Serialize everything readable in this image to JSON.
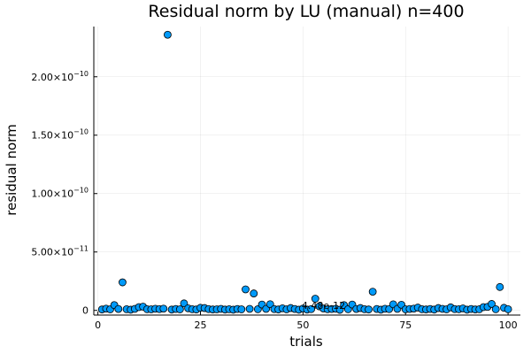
{
  "chart_data": {
    "type": "scatter",
    "title": "Residual norm by LU (manual)  n=400",
    "xlabel": "trials",
    "ylabel": "residual norm",
    "xlim": [
      -1,
      103
    ],
    "ylim": [
      -4e-12,
      2.43e-10
    ],
    "x_ticks": [
      0,
      25,
      50,
      75,
      100
    ],
    "x_tick_labels": [
      "0",
      "25",
      "50",
      "75",
      "100"
    ],
    "y_ticks": [
      0,
      5e-11,
      1e-10,
      1.5e-10,
      2e-10
    ],
    "y_tick_labels": [
      {
        "mantissa": "0",
        "exponent": ""
      },
      {
        "mantissa": "5.00×10",
        "exponent": "−11"
      },
      {
        "mantissa": "1.00×10",
        "exponent": "−10"
      },
      {
        "mantissa": "1.50×10",
        "exponent": "−10"
      },
      {
        "mantissa": "2.00×10",
        "exponent": "−10"
      }
    ],
    "grid": true,
    "legend": "none",
    "marker_color": "#009af9",
    "annotation": {
      "text": "4.48e-12",
      "x": 55,
      "y": 4.48e-12
    },
    "series": [
      {
        "x": [
          1,
          2,
          3,
          4,
          5,
          6,
          7,
          8,
          9,
          10,
          11,
          12,
          13,
          14,
          15,
          16,
          17,
          18,
          19,
          20,
          21,
          22,
          23,
          24,
          25,
          26,
          27,
          28,
          29,
          30,
          31,
          32,
          33,
          34,
          35,
          36,
          37,
          38,
          39,
          40,
          41,
          42,
          43,
          44,
          45,
          46,
          47,
          48,
          49,
          50,
          51,
          52,
          53,
          54,
          55,
          56,
          57,
          58,
          59,
          60,
          61,
          62,
          63,
          64,
          65,
          66,
          67,
          68,
          69,
          70,
          71,
          72,
          73,
          74,
          75,
          76,
          77,
          78,
          79,
          80,
          81,
          82,
          83,
          84,
          85,
          86,
          87,
          88,
          89,
          90,
          91,
          92,
          93,
          94,
          95,
          96,
          97,
          98,
          99,
          100
        ],
        "y": [
          8e-13,
          1.5e-12,
          9e-13,
          4.5e-12,
          1.2e-12,
          2.4e-11,
          1e-12,
          6e-13,
          1.3e-12,
          2.8e-12,
          3.2e-12,
          1e-12,
          9e-13,
          1.4e-12,
          1.1e-12,
          1.5e-12,
          2.36e-10,
          7e-13,
          1.2e-12,
          9e-13,
          6e-12,
          1.8e-12,
          1e-12,
          8e-13,
          2.2e-12,
          2e-12,
          1.1e-12,
          8e-13,
          9e-13,
          1.3e-12,
          7e-13,
          1e-12,
          6e-13,
          1.2e-12,
          9e-13,
          1.8e-11,
          1.3e-12,
          1.45e-11,
          1e-12,
          5e-12,
          1.3e-12,
          5.3e-12,
          1.1e-12,
          8e-13,
          1.8e-12,
          9e-13,
          2e-12,
          1.2e-12,
          6e-13,
          1.6e-12,
          7e-13,
          1.1e-12,
          1e-11,
          3.5e-12,
          1.6e-12,
          1e-12,
          1.2e-12,
          1.4e-12,
          5e-13,
          4.5e-12,
          1e-12,
          5e-12,
          1.2e-12,
          2e-12,
          1e-12,
          8e-13,
          1.6e-11,
          1.2e-12,
          6e-13,
          1.4e-12,
          1.1e-12,
          5.2e-12,
          1.3e-12,
          4.8e-12,
          9e-13,
          1.2e-12,
          1.5e-12,
          2.4e-12,
          1e-12,
          8e-13,
          1.2e-12,
          7e-13,
          2e-12,
          1.3e-12,
          9e-13,
          2.6e-12,
          1.1e-12,
          1e-12,
          1.7e-12,
          6e-13,
          1.2e-12,
          8e-13,
          1e-12,
          2.8e-12,
          3e-12,
          5.5e-12,
          1e-12,
          2e-11,
          2.2e-12,
          1e-12
        ]
      }
    ]
  }
}
